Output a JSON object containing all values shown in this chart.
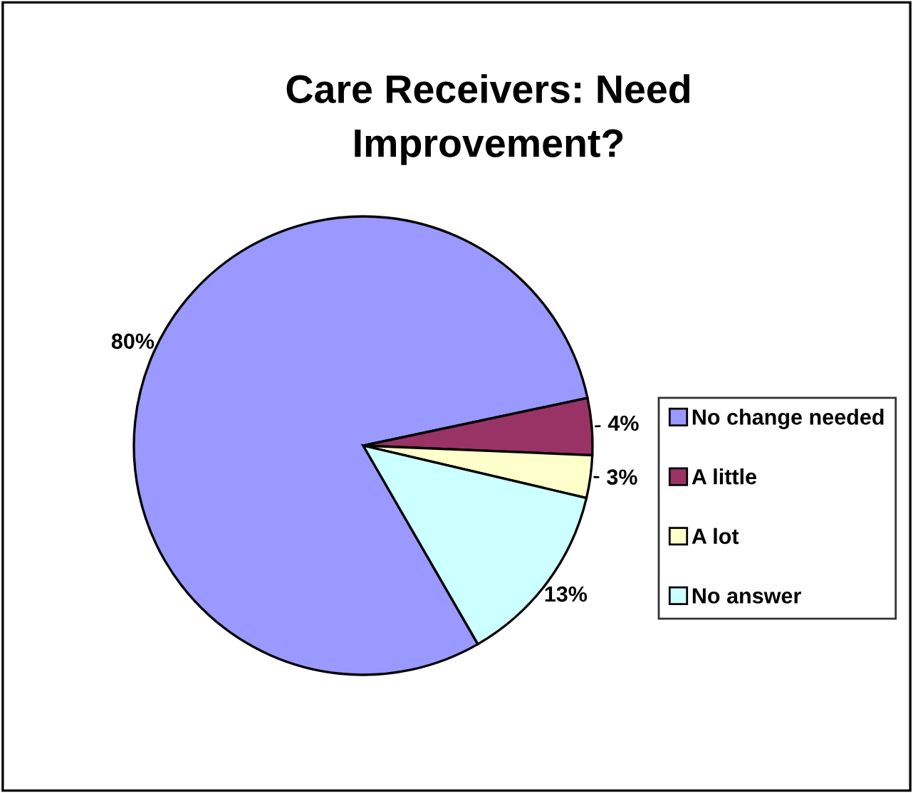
{
  "chart_data": {
    "type": "pie",
    "title": "Care Receivers: Need Improvement?",
    "categories": [
      "No change needed",
      "A little",
      "A lot",
      "No answer"
    ],
    "values": [
      80,
      4,
      3,
      13
    ],
    "colors": [
      "#9999ff",
      "#993366",
      "#ffffcc",
      "#ccffff"
    ],
    "value_labels": [
      "80%",
      "4%",
      "3%",
      "13%"
    ],
    "legend": "right"
  }
}
